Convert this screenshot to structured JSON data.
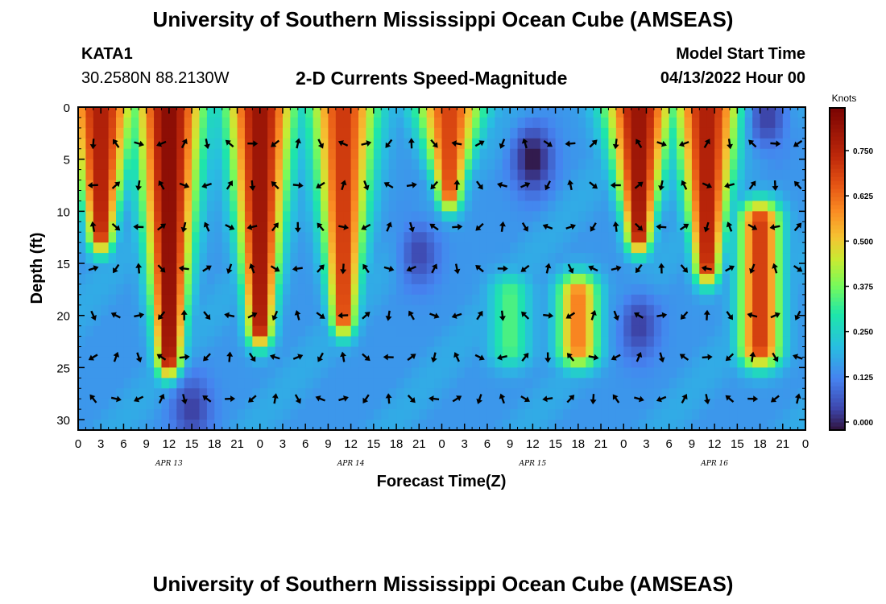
{
  "header": {
    "title": "University of Southern Mississippi Ocean Cube (AMSEAS)",
    "station_id": "KATA1",
    "coordinates": "30.2580N  88.2130W",
    "chart_title": "2-D Currents Speed-Magnitude",
    "model_start_label": "Model Start Time",
    "model_start_value": "04/13/2022 Hour 00"
  },
  "footer": {
    "repeated_title": "University of Southern Mississippi Ocean Cube (AMSEAS)"
  },
  "chart_data": {
    "type": "heatmap",
    "title": "2-D Currents Speed-Magnitude",
    "xlabel": "Forecast Time(Z)",
    "ylabel": "Depth (ft)",
    "xlim": [
      0,
      96
    ],
    "ylim": [
      31,
      0
    ],
    "x_ticks": [
      0,
      3,
      6,
      9,
      12,
      15,
      18,
      21,
      24,
      27,
      30,
      33,
      36,
      39,
      42,
      45,
      48,
      51,
      54,
      57,
      60,
      63,
      66,
      69,
      72,
      75,
      78,
      81,
      84,
      87,
      90,
      93,
      96
    ],
    "x_tick_labels": [
      "0",
      "3",
      "6",
      "9",
      "12",
      "15",
      "18",
      "21",
      "0",
      "3",
      "6",
      "9",
      "12",
      "15",
      "18",
      "21",
      "0",
      "3",
      "6",
      "9",
      "12",
      "15",
      "18",
      "21",
      "0",
      "3",
      "6",
      "9",
      "12",
      "15",
      "18",
      "21",
      "0"
    ],
    "y_ticks": [
      0,
      5,
      10,
      15,
      20,
      25,
      30
    ],
    "y_tick_labels": [
      "0",
      "5",
      "10",
      "15",
      "20",
      "25",
      "30"
    ],
    "date_labels": [
      {
        "hour": 12,
        "text": "APR 13"
      },
      {
        "hour": 36,
        "text": "APR 14"
      },
      {
        "hour": 60,
        "text": "APR 15"
      },
      {
        "hour": 84,
        "text": "APR 16"
      }
    ],
    "colorbar": {
      "label": "Knots",
      "min": 0.0,
      "max": 0.875,
      "ticks": [
        0.0,
        0.125,
        0.25,
        0.375,
        0.5,
        0.625,
        0.75
      ],
      "tick_labels": [
        "0.000",
        "0.125",
        "0.250",
        "0.375",
        "0.500",
        "0.625",
        "0.750"
      ]
    },
    "vector_depths_ft": [
      3.5,
      7.5,
      11.5,
      15.5,
      20,
      24,
      28
    ],
    "speed_field_description_hours": [
      0,
      96
    ],
    "high_speed_cores": [
      {
        "hour_center": 3,
        "depth_top": 0,
        "depth_bottom": 12,
        "speed": 0.78
      },
      {
        "hour_center": 12,
        "depth_top": 0,
        "depth_bottom": 24,
        "speed": 0.85
      },
      {
        "hour_center": 24,
        "depth_top": 0,
        "depth_bottom": 21,
        "speed": 0.82
      },
      {
        "hour_center": 35,
        "depth_top": 0,
        "depth_bottom": 20,
        "speed": 0.72
      },
      {
        "hour_center": 49,
        "depth_top": 0,
        "depth_bottom": 8,
        "speed": 0.7
      },
      {
        "hour_center": 57,
        "depth_top": 18,
        "depth_bottom": 23,
        "speed": 0.36
      },
      {
        "hour_center": 66,
        "depth_top": 18,
        "depth_bottom": 23,
        "speed": 0.62
      },
      {
        "hour_center": 74,
        "depth_top": 0,
        "depth_bottom": 12,
        "speed": 0.82
      },
      {
        "hour_center": 83,
        "depth_top": 0,
        "depth_bottom": 15,
        "speed": 0.78
      },
      {
        "hour_center": 90,
        "depth_top": 11,
        "depth_bottom": 23,
        "speed": 0.72
      }
    ],
    "low_speed_cores": [
      {
        "hour_center": 60,
        "depth_center": 5,
        "speed": 0.0
      },
      {
        "hour_center": 45,
        "depth_center": 14,
        "speed": 0.06
      },
      {
        "hour_center": 74,
        "depth_center": 21,
        "speed": 0.05
      },
      {
        "hour_center": 15,
        "depth_center": 29,
        "speed": 0.05
      },
      {
        "hour_center": 91,
        "depth_center": 1,
        "speed": 0.05
      }
    ]
  }
}
